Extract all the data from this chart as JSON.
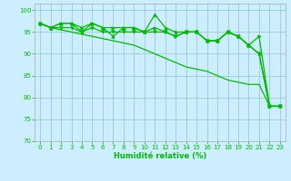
{
  "title": "",
  "xlabel": "Humidité relative (%)",
  "ylabel": "",
  "background_color": "#cceeff",
  "grid_color": "#99cccc",
  "line_color": "#00bb00",
  "xlim": [
    -0.5,
    23.5
  ],
  "ylim": [
    70,
    101.5
  ],
  "yticks": [
    70,
    75,
    80,
    85,
    90,
    95,
    100
  ],
  "xticks": [
    0,
    1,
    2,
    3,
    4,
    5,
    6,
    7,
    8,
    9,
    10,
    11,
    12,
    13,
    14,
    15,
    16,
    17,
    18,
    19,
    20,
    21,
    22,
    23
  ],
  "series1": [
    97,
    96,
    97,
    97,
    95,
    97,
    96,
    94,
    96,
    96,
    95,
    99,
    96,
    95,
    95,
    95,
    93,
    93,
    95,
    94,
    92,
    90,
    78,
    78
  ],
  "series2": [
    97,
    96,
    97,
    97,
    96,
    97,
    96,
    96,
    96,
    96,
    95,
    96,
    95,
    94,
    95,
    95,
    93,
    93,
    95,
    94,
    92,
    94,
    78,
    78
  ],
  "series3": [
    97,
    96,
    96,
    96,
    95,
    96,
    95,
    95,
    95,
    95,
    95,
    95,
    95,
    94,
    95,
    95,
    93,
    93,
    95,
    94,
    92,
    90,
    78,
    78
  ],
  "series_long": [
    97,
    96,
    95.5,
    95,
    94.5,
    94,
    93.5,
    93,
    92.5,
    92,
    91,
    90,
    89,
    88,
    87,
    86.5,
    86,
    85,
    84,
    83.5,
    83,
    83,
    78,
    78
  ]
}
